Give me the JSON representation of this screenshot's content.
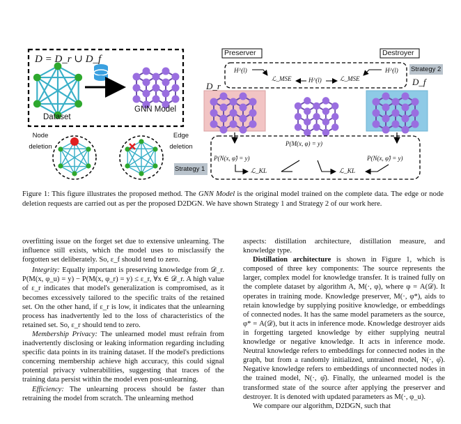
{
  "figure": {
    "dataset_box": {
      "equation": "D = D_r ∪ D_f",
      "dataset_label": "Dataset",
      "gnn_label": "GNN Model"
    },
    "node_deletion_label": [
      "Node",
      "deletion"
    ],
    "edge_deletion_label": [
      "Edge",
      "deletion"
    ],
    "preserver_label": "Preserver",
    "destroyer_label": "Destroyer",
    "strategy2_label": "Strategy 2",
    "strategy1_label": "Strategy 1",
    "dr_label": "D_r",
    "df_label": "D_f",
    "top_formula": {
      "h_left": "H^(l)",
      "l_mse_left": "ℒ_MSE",
      "h_mid": "H^(l)",
      "l_mse_right": "ℒ_MSE",
      "h_right": "H^(l)"
    },
    "bottom_formula": {
      "center": "P(M(x, φ) = y)",
      "left": "P(N(x, φ̂) = y)",
      "right": "P(N(x, φ̂) = y)",
      "lkl_left": "ℒ_KL",
      "lkl_right": "ℒ_KL"
    },
    "colors": {
      "preserver_fill": "#f2c4c4",
      "destroyer_fill": "#8ecae6",
      "node_purple": "#8e5ad6",
      "edge_graph": "#3ab0c8",
      "node_green": "#2ea82e",
      "deleted_node": "#e02020",
      "strategy_box": "#b9c3cc"
    }
  },
  "caption": {
    "prefix": "Figure 1: This figure illustrates the proposed method. The ",
    "italic": "GNN Model",
    "rest": " is the original model trained on the complete data. The edge or node deletion requests are carried out as per the proposed D2DGN. We have shown Strategy 1 and Strategy 2 of our work here."
  },
  "left_col": {
    "p1": "overfitting issue on the forget set due to extensive unlearning. The influence still exists, which the model uses to misclassify the forgotten set deliberately. So, ε_f should tend to zero.",
    "p2_head": "Integrity:",
    "p2": " Equally important is preserving knowledge from 𝒟_r. P(M(x, φ_u) = y) − P(M(x, φ_r) = y) ≤ ε_r, ∀x ∈ 𝒟_r. A high value of ε_r indicates that model's generalization is compromised, as it becomes excessively tailored to the specific traits of the retained set. On the other hand, if ε_r is low, it indicates that the unlearning process has inadvertently led to the loss of characteristics of the retained set. So, ε_r should tend to zero.",
    "p3_head": "Membership Privacy:",
    "p3": " The unlearned model must refrain from inadvertently disclosing or leaking information regarding including specific data points in its training dataset. If the model's predictions concerning membership achieve high accuracy, this could signal potential privacy vulnerabilities, suggesting that traces of the training data persist within the model even post-unlearning.",
    "p4_head": "Efficiency:",
    "p4": " The unlearning process should be faster than retraining the model from scratch. The unlearning method"
  },
  "right_col": {
    "p1": "aspects: distillation architecture, distillation measure, and knowledge type.",
    "p2_head": "Distillation architecture",
    "p2": " is shown in Figure 1, which is composed of three key components: The source represents the larger, complex model for knowledge transfer. It is trained fully on the complete dataset by algorithm A, M(·, φ), where φ = A(𝒟). It operates in training mode. Knowledge preserver, M(·, φ*), aids to retain knowledge by supplying positive knowledge, or embeddings of connected nodes. It has the same model parameters as the source, φ* = A(𝒟), but it acts in inference mode. Knowledge destroyer aids in forgetting targeted knowledge by either supplying neutral knowledge or negative knowledge. It acts in inference mode. Neutral knowledge refers to embeddings for connected nodes in the graph, but from a randomly initialized, untrained model, N(·, φ̂). Negative knowledge refers to embeddings of unconnected nodes in the trained model, N(·, φ̄). Finally, the unlearned model is the transformed state of the source after applying the preserver and destroyer. It is denoted with updated parameters as M(·, φ_u).",
    "p3": "We compare our algorithm, D2DGN, such that"
  }
}
